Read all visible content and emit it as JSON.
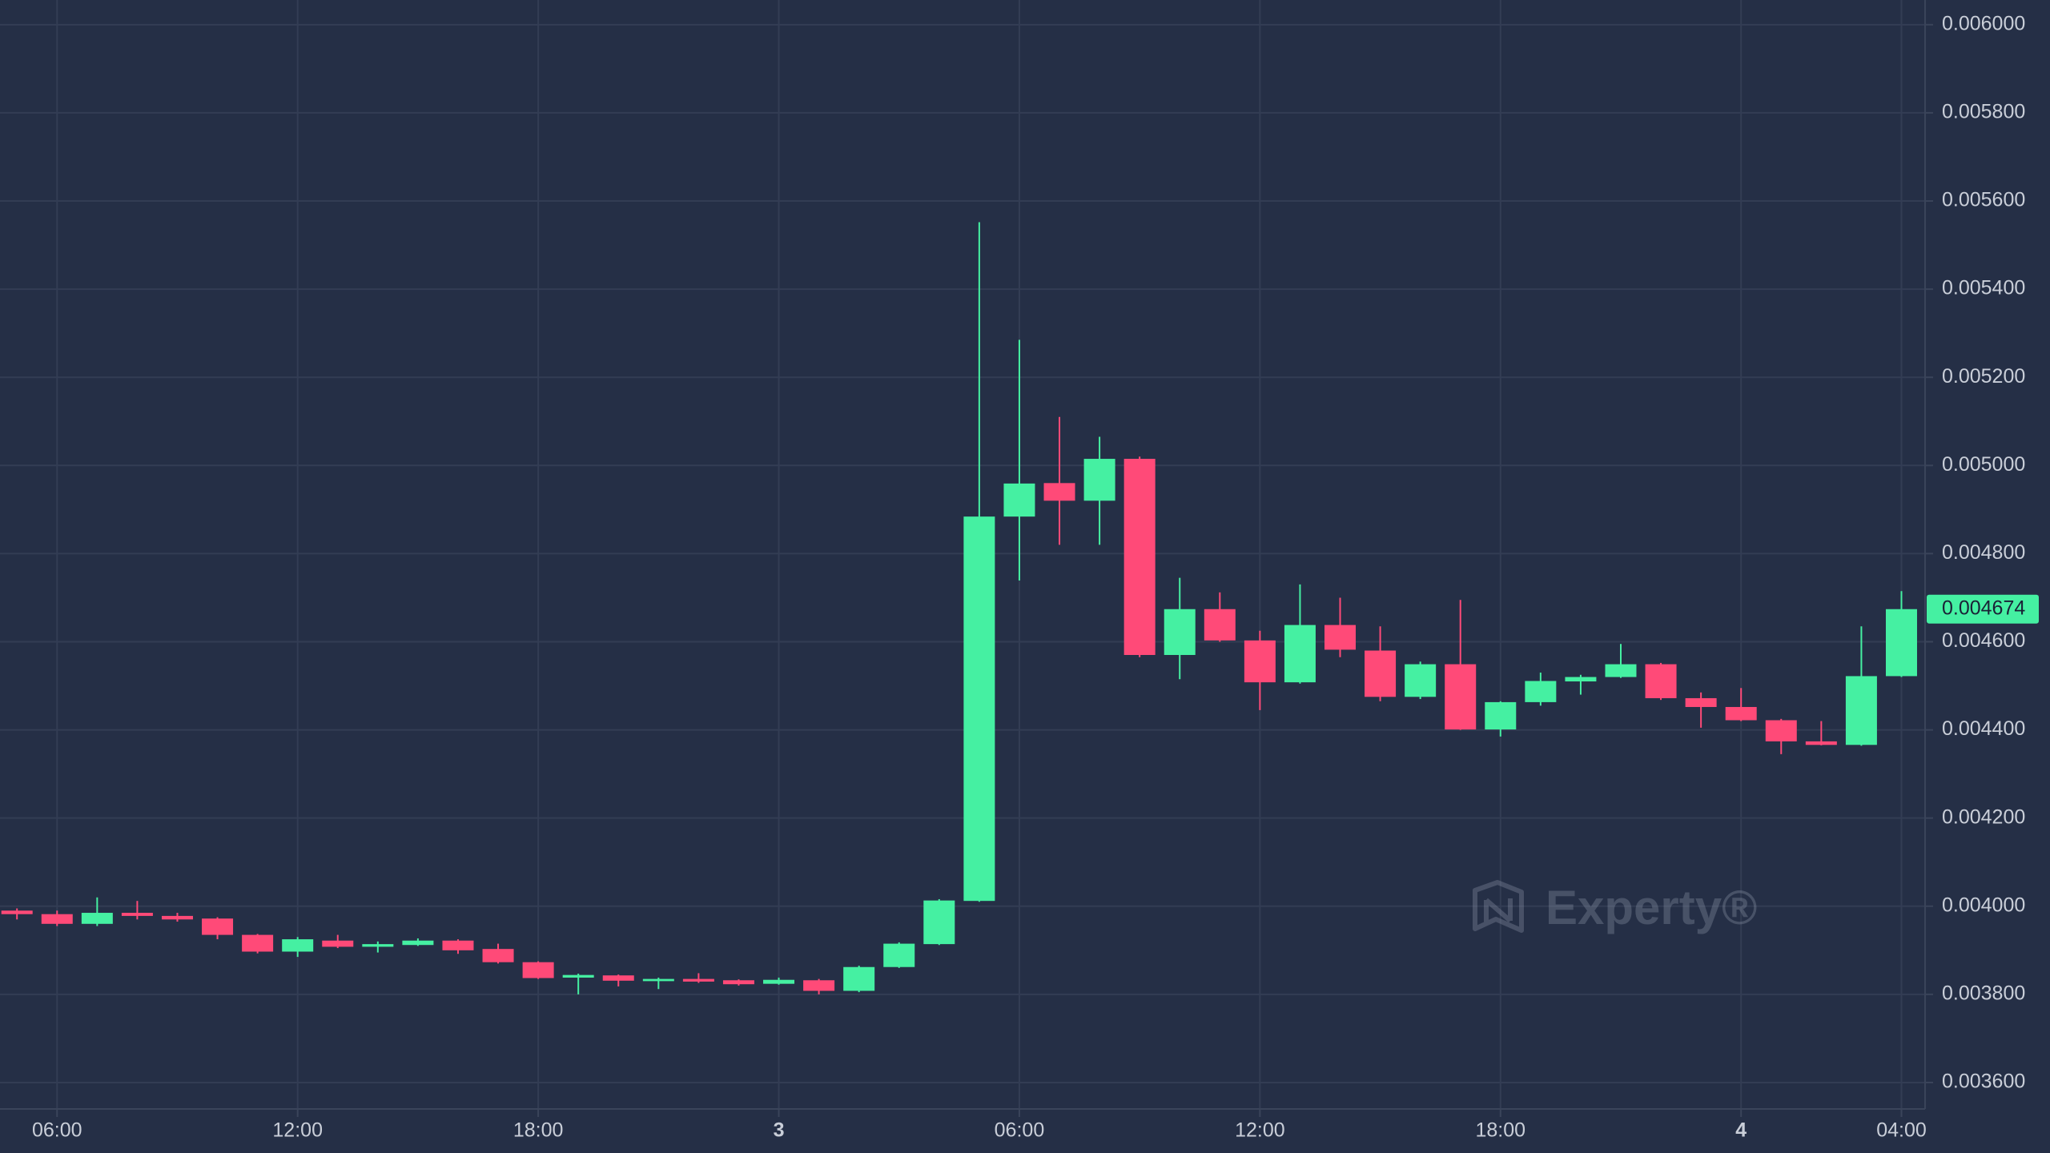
{
  "chart_data": {
    "type": "candlestick",
    "categories": [
      null,
      "06:00",
      null,
      null,
      null,
      null,
      null,
      "12:00",
      null,
      null,
      null,
      null,
      null,
      "18:00",
      null,
      null,
      null,
      null,
      null,
      "3",
      null,
      null,
      null,
      null,
      null,
      "06:00",
      null,
      null,
      null,
      null,
      null,
      "12:00",
      null,
      null,
      null,
      null,
      null,
      "18:00",
      null,
      null,
      null,
      null,
      null,
      "4",
      null,
      null,
      null,
      "04:00"
    ],
    "open": [
      0.00399,
      0.003982,
      0.00396,
      0.003985,
      0.003978,
      0.003972,
      0.003935,
      0.003897,
      0.003922,
      0.003908,
      0.003912,
      0.003922,
      0.003903,
      0.003873,
      0.003838,
      0.003843,
      0.00383,
      0.003835,
      0.003832,
      0.003824,
      0.003832,
      0.003808,
      0.003862,
      0.003914,
      0.004012,
      0.004884,
      0.00496,
      0.00492,
      0.005015,
      0.00457,
      0.004674,
      0.004603,
      0.004508,
      0.004638,
      0.00458,
      0.004475,
      0.004549,
      0.004401,
      0.004463,
      0.00451,
      0.00452,
      0.004549,
      0.004472,
      0.004452,
      0.004422,
      0.004374,
      0.004366,
      0.004522
    ],
    "high": [
      0.003995,
      0.00399,
      0.00402,
      0.004012,
      0.003985,
      0.003975,
      0.003937,
      0.00393,
      0.003935,
      0.00392,
      0.003927,
      0.003925,
      0.003915,
      0.003875,
      0.003847,
      0.003845,
      0.003838,
      0.003848,
      0.003834,
      0.003838,
      0.003835,
      0.003865,
      0.003918,
      0.004016,
      0.005552,
      0.005285,
      0.00511,
      0.005065,
      0.00502,
      0.004745,
      0.004712,
      0.004625,
      0.00473,
      0.0047,
      0.004635,
      0.004555,
      0.004695,
      0.004465,
      0.00453,
      0.004525,
      0.004595,
      0.004552,
      0.004485,
      0.004495,
      0.004425,
      0.00442,
      0.004635,
      0.004715
    ],
    "low": [
      0.00397,
      0.003955,
      0.003955,
      0.00397,
      0.003965,
      0.003925,
      0.003893,
      0.003885,
      0.003905,
      0.003895,
      0.00391,
      0.003892,
      0.00387,
      0.003835,
      0.0038,
      0.003818,
      0.003812,
      0.003826,
      0.00382,
      0.003822,
      0.0038,
      0.003805,
      0.00386,
      0.003912,
      0.00401,
      0.004739,
      0.00482,
      0.00482,
      0.004565,
      0.004515,
      0.0046,
      0.004445,
      0.004505,
      0.004565,
      0.004465,
      0.00447,
      0.0044,
      0.004385,
      0.004455,
      0.00448,
      0.004518,
      0.004468,
      0.004405,
      0.00442,
      0.004345,
      0.004365,
      0.004364,
      0.00452
    ],
    "close": [
      0.003982,
      0.00396,
      0.003985,
      0.003978,
      0.00397,
      0.003935,
      0.003897,
      0.003925,
      0.003908,
      0.003914,
      0.003922,
      0.0039,
      0.003873,
      0.003837,
      0.003844,
      0.003831,
      0.003835,
      0.003829,
      0.003823,
      0.003833,
      0.003808,
      0.003862,
      0.003915,
      0.004013,
      0.004884,
      0.004959,
      0.00492,
      0.005015,
      0.00457,
      0.004674,
      0.004603,
      0.004508,
      0.004638,
      0.004582,
      0.004475,
      0.004549,
      0.004401,
      0.004463,
      0.004511,
      0.00452,
      0.004549,
      0.004472,
      0.004452,
      0.004422,
      0.004374,
      0.004366,
      0.004522,
      0.004674
    ],
    "up_color": "#45f0a2",
    "down_color": "#ff4a78",
    "ylim": [
      0.00354,
      0.006056
    ],
    "yticks": [
      {
        "value": 0.0036,
        "label": "0.003600"
      },
      {
        "value": 0.0038,
        "label": "0.003800"
      },
      {
        "value": 0.004,
        "label": "0.004000"
      },
      {
        "value": 0.0042,
        "label": "0.004200"
      },
      {
        "value": 0.0044,
        "label": "0.004400"
      },
      {
        "value": 0.0046,
        "label": "0.004600"
      },
      {
        "value": 0.0048,
        "label": "0.004800"
      },
      {
        "value": 0.005,
        "label": "0.005000"
      },
      {
        "value": 0.0052,
        "label": "0.005200"
      },
      {
        "value": 0.0054,
        "label": "0.005400"
      },
      {
        "value": 0.0056,
        "label": "0.005600"
      },
      {
        "value": 0.0058,
        "label": "0.005800"
      },
      {
        "value": 0.006,
        "label": "0.006000"
      }
    ],
    "last_price": 0.004674,
    "grid": true,
    "watermark": "Experty®"
  }
}
